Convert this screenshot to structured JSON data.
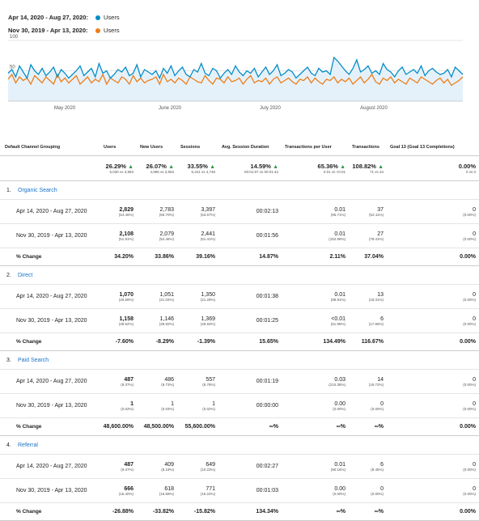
{
  "legend": {
    "current_range": "Apr 14, 2020 - Aug 27, 2020:",
    "previous_range": "Nov 30, 2019 - Apr 13, 2020:",
    "metric": "Users",
    "current_color": "#058dc7",
    "previous_color": "#ed7e17"
  },
  "chart_data": {
    "type": "line",
    "x_ticks": [
      "May 2020",
      "June 2020",
      "July 2020",
      "August 2020"
    ],
    "y_ticks": [
      "100",
      "50"
    ],
    "ylim": [
      0,
      100
    ],
    "series": [
      {
        "name": "Apr 14, 2020 - Aug 27, 2020",
        "values": [
          46,
          52,
          40,
          58,
          48,
          38,
          60,
          50,
          44,
          54,
          42,
          48,
          56,
          40,
          52,
          46,
          38,
          44,
          50,
          58,
          42,
          48,
          54,
          40,
          62,
          46,
          50,
          38,
          44,
          52,
          48,
          56,
          42,
          46,
          60,
          40,
          52,
          48,
          44,
          50,
          38,
          54,
          46,
          58,
          42,
          50,
          56,
          44,
          40,
          52,
          48,
          62,
          46,
          42,
          54,
          50,
          38,
          46,
          52,
          44,
          58,
          48,
          42,
          50,
          46,
          54,
          40,
          48,
          56,
          44,
          50,
          60,
          42,
          46,
          52,
          48,
          38,
          44,
          50,
          56,
          46,
          42,
          54,
          48,
          50,
          44,
          72,
          66,
          58,
          50,
          44,
          54,
          68,
          48,
          52,
          58,
          46,
          50,
          44,
          62,
          52,
          48,
          40,
          50,
          56,
          44,
          48,
          52,
          46,
          58,
          42,
          50,
          54,
          48,
          44,
          46,
          52,
          40,
          56,
          50,
          44
        ]
      },
      {
        "name": "Nov 30, 2019 - Apr 13, 2020",
        "values": [
          36,
          44,
          30,
          40,
          34,
          38,
          28,
          42,
          36,
          30,
          40,
          34,
          28,
          44,
          32,
          38,
          30,
          36,
          42,
          28,
          34,
          40,
          30,
          36,
          32,
          44,
          28,
          38,
          34,
          30,
          40,
          36,
          28,
          42,
          32,
          38,
          30,
          34,
          36,
          40,
          28,
          44,
          32,
          36,
          30,
          38,
          34,
          28,
          40,
          36,
          32,
          30,
          42,
          34,
          28,
          38,
          36,
          30,
          40,
          32,
          34,
          38,
          28,
          36,
          42,
          30,
          34,
          32,
          38,
          28,
          36,
          40,
          30,
          34,
          38,
          32,
          28,
          36,
          34,
          40,
          30,
          38,
          32,
          28,
          36,
          34,
          40,
          30,
          36,
          32,
          38,
          28,
          34,
          40,
          30,
          36,
          44,
          32,
          28,
          38,
          34,
          40,
          30,
          36,
          32,
          28,
          38,
          34,
          30,
          40,
          36,
          32,
          28,
          34,
          38,
          30,
          36,
          26,
          30,
          34,
          40
        ]
      }
    ]
  },
  "table": {
    "headers": [
      "Default Channel Grouping",
      "Users",
      "New Users",
      "Sessions",
      "Avg. Session Duration",
      "Transactions per User",
      "Transactions",
      "Goal 13 (Goal 13 Completions)"
    ],
    "totals": [
      {
        "value": "26.29%",
        "arrow": "▲",
        "sub": "5,030 vs 3,983"
      },
      {
        "value": "26.07%",
        "arrow": "▲",
        "sub": "4,996 vs 3,963"
      },
      {
        "value": "33.55%",
        "arrow": "▲",
        "sub": "6,341 vs 4,748"
      },
      {
        "value": "14.59%",
        "arrow": "▲",
        "sub": "00:01:57 vs 00:01:42"
      },
      {
        "value": "65.36%",
        "arrow": "▲",
        "sub": "0.01 vs <0.01"
      },
      {
        "value": "108.82%",
        "arrow": "▲",
        "sub": "71 vs 34"
      },
      {
        "value": "0.00%",
        "arrow": "",
        "sub": "0 vs 0"
      }
    ],
    "groups": [
      {
        "num": "1.",
        "label": "Organic Search",
        "r1": {
          "label": "Apr 14, 2020 - Aug 27, 2020",
          "c": [
            [
              "2,829",
              "(54.45%)"
            ],
            [
              "2,783",
              "(55.70%)"
            ],
            [
              "3,397",
              "(53.57%)"
            ],
            [
              "00:02:13",
              ""
            ],
            [
              "0.01",
              "(95.71%)"
            ],
            [
              "37",
              "(52.11%)"
            ],
            [
              "0",
              "(0.00%)"
            ]
          ]
        },
        "r2": {
          "label": "Nov 30, 2019 - Apr 13, 2020",
          "c": [
            [
              "2,108",
              "(51.91%)"
            ],
            [
              "2,079",
              "(52.46%)"
            ],
            [
              "2,441",
              "(51.41%)"
            ],
            [
              "00:01:56",
              ""
            ],
            [
              "0.01",
              "(152.98%)"
            ],
            [
              "27",
              "(79.41%)"
            ],
            [
              "0",
              "(0.00%)"
            ]
          ]
        },
        "ch": {
          "label": "% Change",
          "c": [
            "34.20%",
            "33.86%",
            "39.16%",
            "14.87%",
            "2.11%",
            "37.04%",
            "0.00%"
          ]
        }
      },
      {
        "num": "2.",
        "label": "Direct",
        "r1": {
          "label": "Apr 14, 2020 - Aug 27, 2020",
          "c": [
            [
              "1,070",
              "(20.59%)"
            ],
            [
              "1,051",
              "(21.04%)"
            ],
            [
              "1,350",
              "(21.29%)"
            ],
            [
              "00:01:38",
              ""
            ],
            [
              "0.01",
              "(88.91%)"
            ],
            [
              "13",
              "(18.31%)"
            ],
            [
              "0",
              "(0.00%)"
            ]
          ]
        },
        "r2": {
          "label": "Nov 30, 2019 - Apr 13, 2020",
          "c": [
            [
              "1,158",
              "(28.52%)"
            ],
            [
              "1,146",
              "(28.92%)"
            ],
            [
              "1,369",
              "(28.83%)"
            ],
            [
              "00:01:25",
              ""
            ],
            [
              "<0.01",
              "(61.89%)"
            ],
            [
              "6",
              "(17.65%)"
            ],
            [
              "0",
              "(0.00%)"
            ]
          ]
        },
        "ch": {
          "label": "% Change",
          "c": [
            "-7.60%",
            "-8.29%",
            "-1.39%",
            "15.65%",
            "134.49%",
            "116.67%",
            "0.00%"
          ]
        }
      },
      {
        "num": "3.",
        "label": "Paid Search",
        "r1": {
          "label": "Apr 14, 2020 - Aug 27, 2020",
          "c": [
            [
              "487",
              "(9.37%)"
            ],
            [
              "486",
              "(9.73%)"
            ],
            [
              "557",
              "(8.78%)"
            ],
            [
              "00:01:19",
              ""
            ],
            [
              "0.03",
              "(210.38%)"
            ],
            [
              "14",
              "(19.72%)"
            ],
            [
              "0",
              "(0.00%)"
            ]
          ]
        },
        "r2": {
          "label": "Nov 30, 2019 - Apr 13, 2020",
          "c": [
            [
              "1",
              "(0.02%)"
            ],
            [
              "1",
              "(0.03%)"
            ],
            [
              "1",
              "(0.02%)"
            ],
            [
              "00:00:00",
              ""
            ],
            [
              "0.00",
              "(0.00%)"
            ],
            [
              "0",
              "(0.00%)"
            ],
            [
              "0",
              "(0.00%)"
            ]
          ]
        },
        "ch": {
          "label": "% Change",
          "c": [
            "48,600.00%",
            "48,500.00%",
            "55,600.00%",
            "∞%",
            "∞%",
            "∞%",
            "0.00%"
          ]
        }
      },
      {
        "num": "4.",
        "label": "Referral",
        "r1": {
          "label": "Apr 14, 2020 - Aug 27, 2020",
          "c": [
            [
              "487",
              "(9.37%)"
            ],
            [
              "409",
              "(8.19%)"
            ],
            [
              "649",
              "(10.23%)"
            ],
            [
              "00:02:27",
              ""
            ],
            [
              "0.01",
              "(90.16%)"
            ],
            [
              "6",
              "(8.45%)"
            ],
            [
              "0",
              "(0.00%)"
            ]
          ]
        },
        "r2": {
          "label": "Nov 30, 2019 - Apr 13, 2020",
          "c": [
            [
              "666",
              "(16.40%)"
            ],
            [
              "618",
              "(15.59%)"
            ],
            [
              "771",
              "(16.24%)"
            ],
            [
              "00:01:03",
              ""
            ],
            [
              "0.00",
              "(0.00%)"
            ],
            [
              "0",
              "(0.00%)"
            ],
            [
              "0",
              "(0.00%)"
            ]
          ]
        },
        "ch": {
          "label": "% Change",
          "c": [
            "-26.88%",
            "-33.82%",
            "-15.82%",
            "134.34%",
            "∞%",
            "∞%",
            "0.00%"
          ]
        }
      }
    ]
  }
}
